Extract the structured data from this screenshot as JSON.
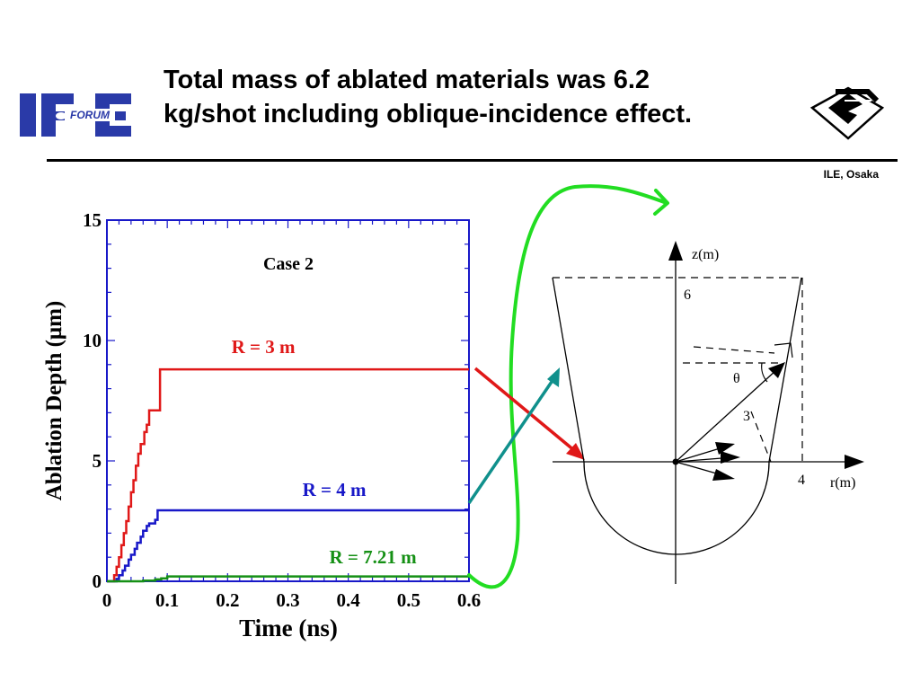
{
  "slide": {
    "title_line1": "Total mass of ablated materials was 6.2",
    "title_line2": "kg/shot including oblique-incidence effect.",
    "affiliation": "ILE, Osaka",
    "logo_left_text": "FORUM"
  },
  "chart_data": {
    "type": "line",
    "title": "Case 2",
    "xlabel": "Time (ns)",
    "ylabel": "Ablation Depth (μm)",
    "xlim": [
      0,
      0.6
    ],
    "ylim": [
      0,
      15
    ],
    "x_ticks": [
      "0",
      "0.1",
      "0.2",
      "0.3",
      "0.4",
      "0.5",
      "0.6"
    ],
    "y_ticks": [
      "0",
      "5",
      "10",
      "15"
    ],
    "grid": false,
    "series": [
      {
        "name": "R = 3 m",
        "color": "#e01818",
        "x": [
          0,
          0.008,
          0.012,
          0.016,
          0.02,
          0.024,
          0.028,
          0.032,
          0.036,
          0.04,
          0.044,
          0.048,
          0.052,
          0.056,
          0.062,
          0.066,
          0.07,
          0.084,
          0.088,
          0.6
        ],
        "y": [
          0,
          0,
          0.25,
          0.6,
          1.0,
          1.5,
          2.0,
          2.5,
          3.1,
          3.7,
          4.2,
          4.8,
          5.3,
          5.7,
          6.2,
          6.5,
          7.1,
          7.1,
          8.8,
          8.8
        ]
      },
      {
        "name": "R = 4 m",
        "color": "#1818c8",
        "x": [
          0,
          0.012,
          0.016,
          0.02,
          0.026,
          0.03,
          0.036,
          0.04,
          0.046,
          0.05,
          0.056,
          0.06,
          0.066,
          0.07,
          0.074,
          0.08,
          0.084,
          0.6
        ],
        "y": [
          0,
          0,
          0.1,
          0.25,
          0.45,
          0.65,
          0.9,
          1.1,
          1.35,
          1.6,
          1.85,
          2.1,
          2.3,
          2.4,
          2.4,
          2.55,
          2.95,
          2.95
        ]
      },
      {
        "name": "R = 7.21 m",
        "color": "#159015",
        "x": [
          0,
          0.04,
          0.06,
          0.08,
          0.09,
          0.1,
          0.6
        ],
        "y": [
          0,
          0,
          0.03,
          0.08,
          0.12,
          0.2,
          0.2
        ]
      }
    ]
  },
  "diagram": {
    "z_axis_label": "z(m)",
    "r_axis_label": "r(m)",
    "z_value_label": "6",
    "r_value_label": "4",
    "radius_label": "3",
    "angle_label": "θ"
  },
  "colors": {
    "ife_logo_blue": "#2a3aa8",
    "arrow_red": "#e01818",
    "arrow_teal": "#10908c",
    "curve_green": "#22dd22",
    "chart_frame": "#1818c8"
  }
}
